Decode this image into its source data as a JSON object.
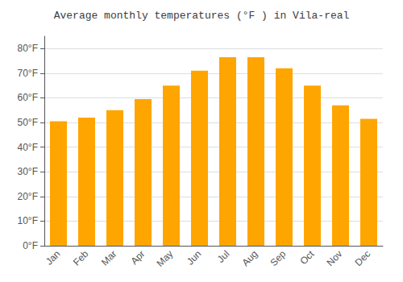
{
  "chart_data": {
    "type": "bar",
    "title": "Average monthly temperatures (°F ) in Vila-real",
    "categories": [
      "Jan",
      "Feb",
      "Mar",
      "Apr",
      "May",
      "Jun",
      "Jul",
      "Aug",
      "Sep",
      "Oct",
      "Nov",
      "Dec"
    ],
    "values": [
      50.5,
      52.0,
      55.0,
      59.5,
      65.0,
      71.0,
      76.5,
      76.5,
      72.0,
      65.0,
      57.0,
      51.5
    ],
    "color": "#FFA500",
    "ylim": [
      0,
      85
    ],
    "yticks": [
      {
        "value": 0,
        "label": "0°F"
      },
      {
        "value": 10,
        "label": "10°F"
      },
      {
        "value": 20,
        "label": "20°F"
      },
      {
        "value": 30,
        "label": "30°F"
      },
      {
        "value": 40,
        "label": "40°F"
      },
      {
        "value": 50,
        "label": "50°F"
      },
      {
        "value": 60,
        "label": "60°F"
      },
      {
        "value": 70,
        "label": "70°F"
      },
      {
        "value": 80,
        "label": "80°F"
      }
    ],
    "grid": true
  }
}
